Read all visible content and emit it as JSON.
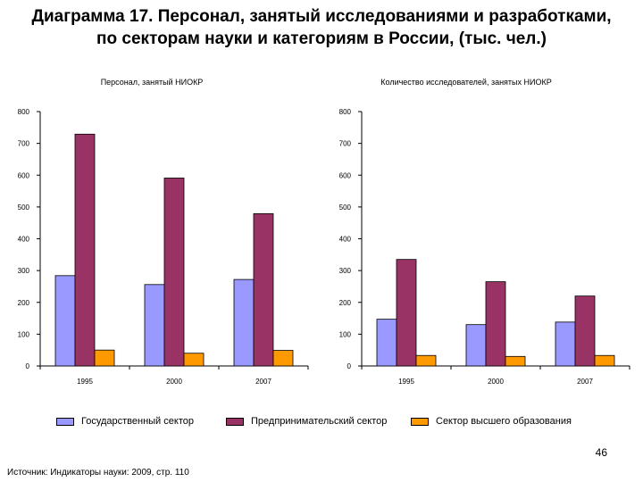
{
  "slide": {
    "title_line1": "Диаграмма 17. Персонал, занятый исследованиями и разработками,",
    "title_line2": "по  секторам науки и категориям в России, (тыс. чел.)",
    "page_number": "46",
    "source": "Источник: Индикаторы науки: 2009, стр. 110"
  },
  "colors": {
    "series": [
      "#9999ff",
      "#993366",
      "#ff9900"
    ]
  },
  "chart_data": [
    {
      "type": "bar",
      "title": "Персонал, занятый НИОКР",
      "categories": [
        "1995",
        "2000",
        "2007"
      ],
      "ylim": [
        0,
        800
      ],
      "yticks": [
        "0",
        "100",
        "200",
        "300",
        "400",
        "500",
        "600",
        "700",
        "800"
      ],
      "grid": false,
      "legend": "bottom",
      "series": [
        {
          "name": "Государственный сектор",
          "values": [
            284,
            256,
            272
          ]
        },
        {
          "name": "Предпринимательский сектор",
          "values": [
            729,
            591,
            479
          ]
        },
        {
          "name": "Сектор высшего образования",
          "values": [
            50,
            40,
            49
          ]
        }
      ]
    },
    {
      "type": "bar",
      "title": "Количество исследователей, занятых НИОКР",
      "categories": [
        "1995",
        "2000",
        "2007"
      ],
      "ylim": [
        0,
        800
      ],
      "yticks": [
        "0",
        "100",
        "200",
        "300",
        "400",
        "500",
        "600",
        "700",
        "800"
      ],
      "grid": false,
      "legend": "bottom",
      "series": [
        {
          "name": "Государственный сектор",
          "values": [
            147,
            130,
            138
          ]
        },
        {
          "name": "Предпринимательский сектор",
          "values": [
            335,
            265,
            220
          ]
        },
        {
          "name": "Сектор высшего образования",
          "values": [
            33,
            30,
            33
          ]
        }
      ]
    }
  ]
}
